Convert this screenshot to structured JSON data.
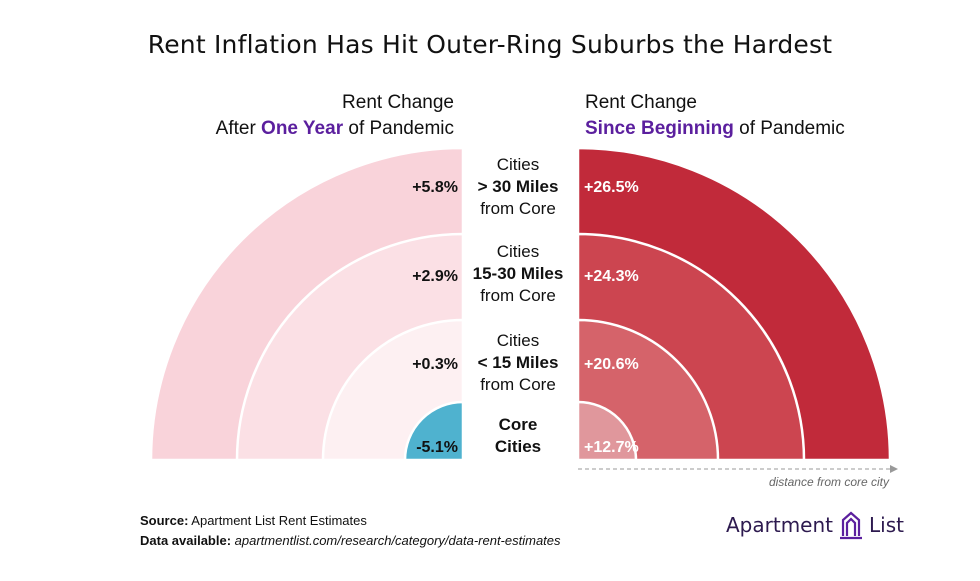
{
  "title": "Rent Inflation Has Hit Outer-Ring Suburbs the Hardest",
  "left_header": {
    "line1": "Rent Change",
    "prefix": "After ",
    "accent": "One Year",
    "suffix": " of Pandemic"
  },
  "right_header": {
    "line1": "Rent Change",
    "accent": "Since Beginning",
    "suffix": " of Pandemic"
  },
  "rings": [
    {
      "line1": "Cities",
      "line2": "> 30 Miles",
      "line3": "from Core"
    },
    {
      "line1": "Cities",
      "line2": "15-30 Miles",
      "line3": "from Core"
    },
    {
      "line1": "Cities",
      "line2": "< 15 Miles",
      "line3": "from Core"
    },
    {
      "line1": "Core",
      "line2": "Cities",
      "line3": ""
    }
  ],
  "axis_note": "distance from core city",
  "source": {
    "label": "Source:",
    "text": " Apartment List Rent Estimates"
  },
  "data_available": {
    "label": "Data available:",
    "text": " apartmentlist.com/research/category/data-rent-estimates"
  },
  "logo": {
    "word1": "Apartment",
    "word2": "List"
  },
  "colors": {
    "accent": "#5b1f9e",
    "left_rings": [
      "#f9d3da",
      "#fbe0e5",
      "#fdf0f2",
      "#4fb2cf"
    ],
    "right_rings": [
      "#c12a3a",
      "#cc4550",
      "#d5636a",
      "#e0979c"
    ]
  },
  "chart_data": [
    {
      "type": "radial-bar",
      "title": "Rent Change After One Year of Pandemic",
      "categories": [
        "Cities > 30 Miles from Core",
        "Cities 15-30 Miles from Core",
        "Cities < 15 Miles from Core",
        "Core Cities"
      ],
      "values": [
        5.8,
        2.9,
        0.3,
        -5.1
      ],
      "labels": [
        "+5.8%",
        "+2.9%",
        "+0.3%",
        "-5.1%"
      ],
      "unit": "%"
    },
    {
      "type": "radial-bar",
      "title": "Rent Change Since Beginning of Pandemic",
      "categories": [
        "Cities > 30 Miles from Core",
        "Cities 15-30 Miles from Core",
        "Cities < 15 Miles from Core",
        "Core Cities"
      ],
      "values": [
        26.5,
        24.3,
        20.6,
        12.7
      ],
      "labels": [
        "+26.5%",
        "+24.3%",
        "+20.6%",
        "+12.7%"
      ],
      "unit": "%"
    }
  ]
}
